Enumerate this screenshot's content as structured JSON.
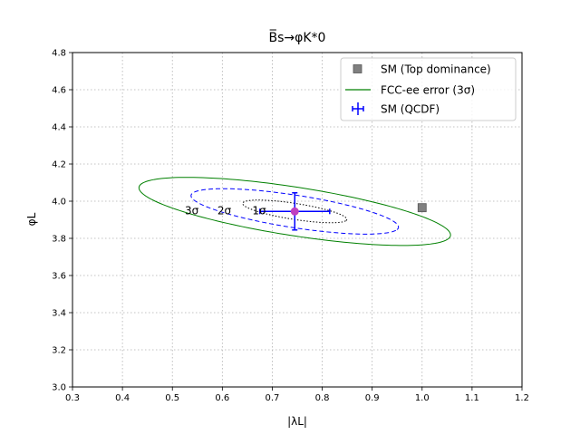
{
  "chart_data": {
    "type": "scatter",
    "title": "B̅s→φK*0",
    "xlabel": "|λL|",
    "ylabel": "φL",
    "xlim": [
      0.3,
      1.2
    ],
    "ylim": [
      3.0,
      4.8
    ],
    "xticks": [
      "0.3",
      "0.4",
      "0.5",
      "0.6",
      "0.7",
      "0.8",
      "0.9",
      "1.0",
      "1.1",
      "1.2"
    ],
    "yticks": [
      "3.0",
      "3.2",
      "3.4",
      "3.6",
      "3.8",
      "4.0",
      "4.2",
      "4.4",
      "4.6",
      "4.8"
    ],
    "grid": true,
    "legend_position": "top-right",
    "legend": [
      {
        "label": "SM (Top dominance)",
        "marker": "square",
        "color": "#808080"
      },
      {
        "label": "FCC-ee error (3σ)",
        "marker": "line",
        "color": "#008000"
      },
      {
        "label": "SM (QCDF)",
        "marker": "errorbar",
        "color": "#0000ff"
      }
    ],
    "points": [
      {
        "name": "SM (Top dominance)",
        "x": 1.0,
        "y": 3.965
      },
      {
        "name": "SM (QCDF)",
        "x": 0.745,
        "y": 3.945,
        "xerr": 0.07,
        "yerr": 0.1
      }
    ],
    "ellipses": [
      {
        "label": "FCC-ee error (3σ)",
        "center": [
          0.745,
          3.945
        ],
        "semi_major": 0.341,
        "semi_minor": 0.121,
        "angle_deg": -25.6,
        "style": "solid",
        "color": "#008000"
      },
      {
        "label": "2σ",
        "center": [
          0.745,
          3.945
        ],
        "semi_major": 0.227,
        "semi_minor": 0.081,
        "angle_deg": -25.6,
        "style": "dashed",
        "color": "#0000ff"
      },
      {
        "label": "1σ",
        "center": [
          0.745,
          3.945
        ],
        "semi_major": 0.114,
        "semi_minor": 0.04,
        "angle_deg": -25.6,
        "style": "dotted",
        "color": "#000000"
      }
    ],
    "annotations": [
      "3σ",
      "2σ",
      "1σ"
    ],
    "colors": {
      "green": "#008000",
      "blue": "#0000ff",
      "gray": "#808080",
      "magenta": "#bf40bf"
    }
  }
}
